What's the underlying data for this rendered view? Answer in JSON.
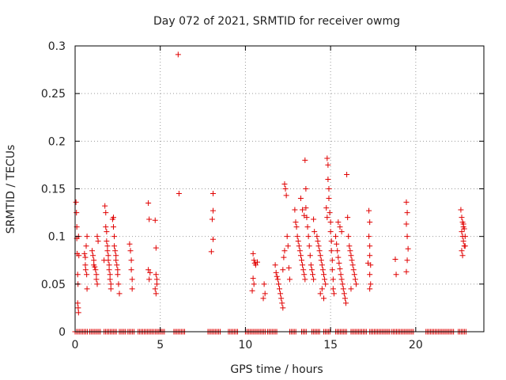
{
  "chart_data": {
    "type": "scatter",
    "title": "Day 072 of 2021, SRMTID for receiver owmg",
    "xlabel": "GPS time / hours",
    "ylabel": "SRMTID / TECUs",
    "xlim": [
      0,
      24
    ],
    "ylim": [
      0,
      0.3
    ],
    "x_ticks": [
      0,
      5,
      10,
      15,
      20
    ],
    "x_tick_labels": [
      "0",
      "5",
      "10",
      "15",
      "20"
    ],
    "y_ticks": [
      0,
      0.05,
      0.1,
      0.15,
      0.2,
      0.25,
      0.3
    ],
    "y_tick_labels": [
      "0",
      "0.05",
      "0.1",
      "0.15",
      "0.2",
      "0.25",
      "0.3"
    ],
    "grid": true,
    "marker": "+",
    "marker_color": "#e00000",
    "series": [
      {
        "name": "SRMTID",
        "points": [
          [
            0.05,
            0.136
          ],
          [
            0.08,
            0.125
          ],
          [
            0.1,
            0.11
          ],
          [
            0.1,
            0.098
          ],
          [
            0.12,
            0.082
          ],
          [
            0.15,
            0.06
          ],
          [
            0.17,
            0.05
          ],
          [
            0.15,
            0.03
          ],
          [
            0.18,
            0.025
          ],
          [
            0.2,
            0.02
          ],
          [
            0.2,
            0.1
          ],
          [
            0.22,
            0.08
          ],
          [
            0.55,
            0.082
          ],
          [
            0.6,
            0.078
          ],
          [
            0.6,
            0.07
          ],
          [
            0.62,
            0.065
          ],
          [
            0.65,
            0.09
          ],
          [
            0.68,
            0.06
          ],
          [
            0.7,
            0.045
          ],
          [
            0.7,
            0.1
          ],
          [
            1.0,
            0.085
          ],
          [
            1.05,
            0.08
          ],
          [
            1.1,
            0.075
          ],
          [
            1.1,
            0.07
          ],
          [
            1.15,
            0.068
          ],
          [
            1.2,
            0.065
          ],
          [
            1.25,
            0.06
          ],
          [
            1.25,
            0.055
          ],
          [
            1.3,
            0.05
          ],
          [
            1.3,
            0.1
          ],
          [
            1.35,
            0.095
          ],
          [
            1.75,
            0.132
          ],
          [
            1.8,
            0.125
          ],
          [
            1.8,
            0.11
          ],
          [
            1.85,
            0.105
          ],
          [
            1.85,
            0.095
          ],
          [
            1.9,
            0.09
          ],
          [
            1.9,
            0.085
          ],
          [
            1.95,
            0.08
          ],
          [
            1.95,
            0.075
          ],
          [
            2.0,
            0.07
          ],
          [
            2.0,
            0.065
          ],
          [
            2.05,
            0.06
          ],
          [
            2.05,
            0.055
          ],
          [
            2.1,
            0.05
          ],
          [
            2.1,
            0.045
          ],
          [
            1.7,
            0.075
          ],
          [
            2.2,
            0.118
          ],
          [
            2.25,
            0.11
          ],
          [
            2.3,
            0.1
          ],
          [
            2.3,
            0.09
          ],
          [
            2.35,
            0.085
          ],
          [
            2.4,
            0.08
          ],
          [
            2.4,
            0.075
          ],
          [
            2.45,
            0.07
          ],
          [
            2.5,
            0.065
          ],
          [
            2.5,
            0.06
          ],
          [
            2.55,
            0.05
          ],
          [
            2.6,
            0.04
          ],
          [
            2.25,
            0.12
          ],
          [
            3.2,
            0.092
          ],
          [
            3.25,
            0.085
          ],
          [
            3.3,
            0.075
          ],
          [
            3.3,
            0.065
          ],
          [
            3.35,
            0.055
          ],
          [
            3.35,
            0.045
          ],
          [
            4.3,
            0.135
          ],
          [
            4.35,
            0.118
          ],
          [
            4.3,
            0.065
          ],
          [
            4.4,
            0.062
          ],
          [
            4.35,
            0.055
          ],
          [
            4.7,
            0.117
          ],
          [
            4.75,
            0.088
          ],
          [
            4.75,
            0.06
          ],
          [
            4.8,
            0.055
          ],
          [
            4.8,
            0.05
          ],
          [
            4.7,
            0.045
          ],
          [
            4.75,
            0.04
          ],
          [
            6.05,
            0.291
          ],
          [
            6.1,
            0.145
          ],
          [
            8.1,
            0.145
          ],
          [
            8.1,
            0.127
          ],
          [
            8.05,
            0.118
          ],
          [
            8.1,
            0.097
          ],
          [
            8.0,
            0.084
          ],
          [
            10.45,
            0.082
          ],
          [
            10.5,
            0.075
          ],
          [
            10.55,
            0.072
          ],
          [
            10.6,
            0.07
          ],
          [
            10.7,
            0.073
          ],
          [
            10.45,
            0.056
          ],
          [
            10.5,
            0.05
          ],
          [
            10.4,
            0.043
          ],
          [
            11.1,
            0.05
          ],
          [
            11.15,
            0.04
          ],
          [
            11.05,
            0.035
          ],
          [
            11.75,
            0.07
          ],
          [
            11.8,
            0.062
          ],
          [
            11.85,
            0.058
          ],
          [
            11.9,
            0.055
          ],
          [
            11.95,
            0.05
          ],
          [
            12.0,
            0.045
          ],
          [
            12.05,
            0.04
          ],
          [
            12.1,
            0.035
          ],
          [
            12.15,
            0.03
          ],
          [
            12.2,
            0.025
          ],
          [
            12.2,
            0.065
          ],
          [
            12.25,
            0.078
          ],
          [
            12.3,
            0.085
          ],
          [
            12.3,
            0.155
          ],
          [
            12.35,
            0.15
          ],
          [
            12.4,
            0.143
          ],
          [
            12.45,
            0.1
          ],
          [
            12.5,
            0.09
          ],
          [
            12.55,
            0.067
          ],
          [
            12.6,
            0.055
          ],
          [
            12.9,
            0.128
          ],
          [
            12.95,
            0.115
          ],
          [
            13.0,
            0.11
          ],
          [
            13.05,
            0.1
          ],
          [
            13.1,
            0.095
          ],
          [
            13.15,
            0.09
          ],
          [
            13.2,
            0.085
          ],
          [
            13.25,
            0.08
          ],
          [
            13.3,
            0.075
          ],
          [
            13.35,
            0.07
          ],
          [
            13.4,
            0.065
          ],
          [
            13.45,
            0.06
          ],
          [
            13.5,
            0.055
          ],
          [
            13.5,
            0.18
          ],
          [
            13.55,
            0.15
          ],
          [
            13.55,
            0.13
          ],
          [
            13.6,
            0.12
          ],
          [
            13.65,
            0.11
          ],
          [
            13.7,
            0.1
          ],
          [
            13.75,
            0.09
          ],
          [
            13.8,
            0.08
          ],
          [
            13.85,
            0.07
          ],
          [
            13.9,
            0.065
          ],
          [
            13.95,
            0.06
          ],
          [
            14.0,
            0.055
          ],
          [
            14.0,
            0.118
          ],
          [
            14.05,
            0.105
          ],
          [
            13.25,
            0.14
          ],
          [
            13.35,
            0.128
          ],
          [
            13.45,
            0.122
          ],
          [
            14.2,
            0.1
          ],
          [
            14.25,
            0.095
          ],
          [
            14.3,
            0.09
          ],
          [
            14.35,
            0.085
          ],
          [
            14.4,
            0.08
          ],
          [
            14.45,
            0.075
          ],
          [
            14.5,
            0.07
          ],
          [
            14.55,
            0.065
          ],
          [
            14.6,
            0.06
          ],
          [
            14.65,
            0.055
          ],
          [
            14.7,
            0.05
          ],
          [
            14.5,
            0.045
          ],
          [
            14.4,
            0.04
          ],
          [
            14.6,
            0.035
          ],
          [
            14.8,
            0.182
          ],
          [
            14.85,
            0.175
          ],
          [
            14.85,
            0.16
          ],
          [
            14.9,
            0.15
          ],
          [
            14.9,
            0.14
          ],
          [
            14.95,
            0.125
          ],
          [
            15.0,
            0.115
          ],
          [
            15.0,
            0.105
          ],
          [
            15.05,
            0.095
          ],
          [
            15.05,
            0.085
          ],
          [
            15.1,
            0.075
          ],
          [
            15.1,
            0.065
          ],
          [
            15.15,
            0.055
          ],
          [
            15.15,
            0.045
          ],
          [
            15.2,
            0.04
          ],
          [
            14.75,
            0.13
          ],
          [
            14.8,
            0.12
          ],
          [
            15.3,
            0.1
          ],
          [
            15.35,
            0.092
          ],
          [
            15.4,
            0.085
          ],
          [
            15.45,
            0.078
          ],
          [
            15.5,
            0.072
          ],
          [
            15.55,
            0.066
          ],
          [
            15.6,
            0.06
          ],
          [
            15.65,
            0.055
          ],
          [
            15.7,
            0.05
          ],
          [
            15.75,
            0.045
          ],
          [
            15.8,
            0.04
          ],
          [
            15.85,
            0.035
          ],
          [
            15.9,
            0.03
          ],
          [
            15.45,
            0.115
          ],
          [
            15.55,
            0.11
          ],
          [
            15.65,
            0.105
          ],
          [
            15.95,
            0.165
          ],
          [
            16.0,
            0.12
          ],
          [
            16.05,
            0.1
          ],
          [
            16.1,
            0.09
          ],
          [
            16.15,
            0.085
          ],
          [
            16.2,
            0.08
          ],
          [
            16.25,
            0.075
          ],
          [
            16.3,
            0.07
          ],
          [
            16.35,
            0.065
          ],
          [
            16.4,
            0.06
          ],
          [
            16.45,
            0.055
          ],
          [
            16.5,
            0.05
          ],
          [
            16.2,
            0.045
          ],
          [
            17.25,
            0.127
          ],
          [
            17.3,
            0.115
          ],
          [
            17.25,
            0.1
          ],
          [
            17.3,
            0.09
          ],
          [
            17.3,
            0.08
          ],
          [
            17.35,
            0.07
          ],
          [
            17.3,
            0.06
          ],
          [
            17.35,
            0.05
          ],
          [
            17.3,
            0.045
          ],
          [
            17.2,
            0.072
          ],
          [
            18.8,
            0.076
          ],
          [
            18.85,
            0.06
          ],
          [
            19.45,
            0.136
          ],
          [
            19.5,
            0.125
          ],
          [
            19.45,
            0.113
          ],
          [
            19.5,
            0.1
          ],
          [
            19.55,
            0.087
          ],
          [
            19.5,
            0.075
          ],
          [
            19.45,
            0.063
          ],
          [
            22.65,
            0.128
          ],
          [
            22.7,
            0.12
          ],
          [
            22.75,
            0.115
          ],
          [
            22.8,
            0.11
          ],
          [
            22.7,
            0.105
          ],
          [
            22.75,
            0.1
          ],
          [
            22.8,
            0.095
          ],
          [
            22.85,
            0.09
          ],
          [
            22.7,
            0.085
          ],
          [
            22.75,
            0.08
          ],
          [
            22.8,
            0.113
          ],
          [
            22.85,
            0.108
          ],
          [
            22.9,
            0.1
          ],
          [
            22.9,
            0.09
          ]
        ],
        "zero_runs": [
          [
            0.0,
            0.8
          ],
          [
            0.85,
            1.5
          ],
          [
            1.7,
            2.5
          ],
          [
            2.6,
            3.0
          ],
          [
            3.1,
            3.5
          ],
          [
            3.7,
            4.6
          ],
          [
            4.7,
            5.3
          ],
          [
            5.8,
            6.5
          ],
          [
            7.8,
            8.6
          ],
          [
            9.0,
            9.6
          ],
          [
            10.0,
            11.2
          ],
          [
            11.3,
            11.9
          ],
          [
            12.6,
            13.0
          ],
          [
            13.3,
            13.6
          ],
          [
            13.9,
            14.4
          ],
          [
            14.6,
            15.0
          ],
          [
            15.3,
            16.0
          ],
          [
            16.2,
            17.1
          ],
          [
            17.3,
            18.5
          ],
          [
            18.6,
            19.9
          ],
          [
            20.6,
            22.3
          ],
          [
            22.5,
            23.0
          ]
        ]
      }
    ]
  }
}
